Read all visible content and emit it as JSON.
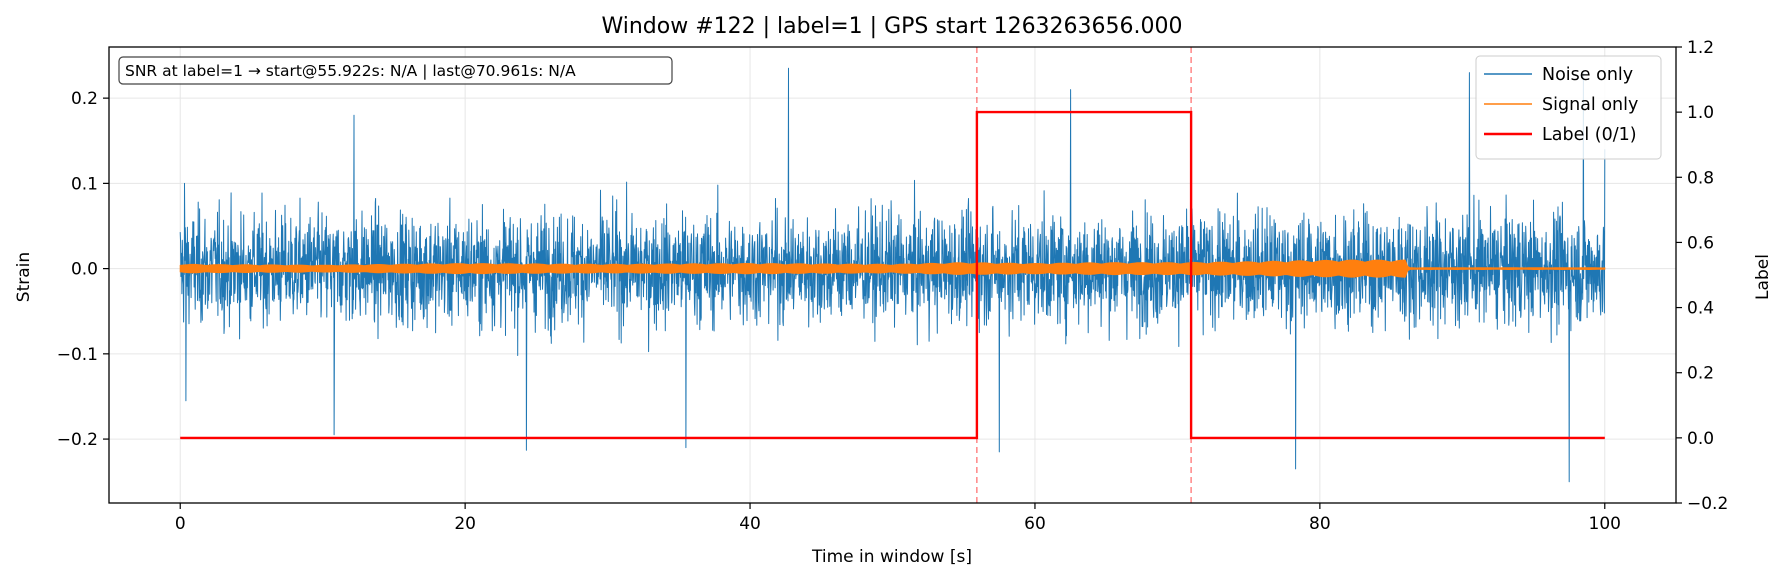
{
  "chart_data": {
    "type": "line",
    "title": "Window #122  |  label=1  |  GPS start 1263263656.000",
    "xlabel": "Time in window [s]",
    "ylabel": "Strain",
    "y2label": "Label",
    "xlim": [
      -5,
      105
    ],
    "ylim": [
      -0.275,
      0.26
    ],
    "y2lim": [
      -0.2,
      1.2
    ],
    "xticks": [
      0,
      20,
      40,
      60,
      80,
      100
    ],
    "xtick_labels": [
      "0",
      "20",
      "40",
      "60",
      "80",
      "100"
    ],
    "yticks": [
      -0.2,
      -0.1,
      0.0,
      0.1,
      0.2
    ],
    "ytick_labels": [
      "−0.2",
      "−0.1",
      "0.0",
      "0.1",
      "0.2"
    ],
    "y2ticks": [
      -0.2,
      0.0,
      0.2,
      0.4,
      0.6,
      0.8,
      1.0,
      1.2
    ],
    "y2tick_labels": [
      "−0.2",
      "0.0",
      "0.2",
      "0.4",
      "0.6",
      "0.8",
      "1.0",
      "1.2"
    ],
    "grid": true,
    "legend_placement": "top-right",
    "annotation": "SNR at label=1 → start@55.922s: N/A | last@70.961s: N/A",
    "vlines": [
      55.922,
      70.961
    ],
    "series": [
      {
        "name": "Noise only",
        "axis": "left",
        "color": "#1f77b4",
        "x_range": [
          0,
          100
        ],
        "typical_amplitude": 0.13,
        "peak_samples": [
          {
            "x": 0.3,
            "y": 0.1
          },
          {
            "x": 0.4,
            "y": -0.155
          },
          {
            "x": 10.8,
            "y": -0.195
          },
          {
            "x": 12.2,
            "y": 0.18
          },
          {
            "x": 24.3,
            "y": -0.213
          },
          {
            "x": 35.5,
            "y": -0.21
          },
          {
            "x": 42.7,
            "y": 0.235
          },
          {
            "x": 57.5,
            "y": -0.215
          },
          {
            "x": 62.5,
            "y": 0.21
          },
          {
            "x": 78.3,
            "y": -0.235
          },
          {
            "x": 90.5,
            "y": 0.23
          },
          {
            "x": 97.5,
            "y": -0.25
          },
          {
            "x": 98.5,
            "y": 0.23
          },
          {
            "x": 100.0,
            "y": 0.14
          }
        ]
      },
      {
        "name": "Signal only",
        "axis": "left",
        "color": "#ff7f0e",
        "x_range": [
          0,
          100
        ],
        "envelope": [
          {
            "x": 0,
            "y": 0.005
          },
          {
            "x": 10,
            "y": 0.004
          },
          {
            "x": 20,
            "y": 0.006
          },
          {
            "x": 30,
            "y": 0.005
          },
          {
            "x": 40,
            "y": 0.006
          },
          {
            "x": 50,
            "y": 0.005
          },
          {
            "x": 55,
            "y": 0.007
          },
          {
            "x": 60,
            "y": 0.006
          },
          {
            "x": 65,
            "y": 0.007
          },
          {
            "x": 70,
            "y": 0.007
          },
          {
            "x": 75,
            "y": 0.008
          },
          {
            "x": 78,
            "y": 0.009
          },
          {
            "x": 82,
            "y": 0.01
          },
          {
            "x": 86,
            "y": 0.01
          },
          {
            "x": 86.2,
            "y": 0.001
          },
          {
            "x": 100,
            "y": 0.001
          }
        ]
      },
      {
        "name": "Label (0/1)",
        "axis": "right",
        "color": "#ff0000",
        "points": [
          {
            "x": 0,
            "y": 0
          },
          {
            "x": 55.922,
            "y": 0
          },
          {
            "x": 55.922,
            "y": 1
          },
          {
            "x": 70.961,
            "y": 1
          },
          {
            "x": 70.961,
            "y": 0
          },
          {
            "x": 100,
            "y": 0
          }
        ]
      }
    ]
  }
}
